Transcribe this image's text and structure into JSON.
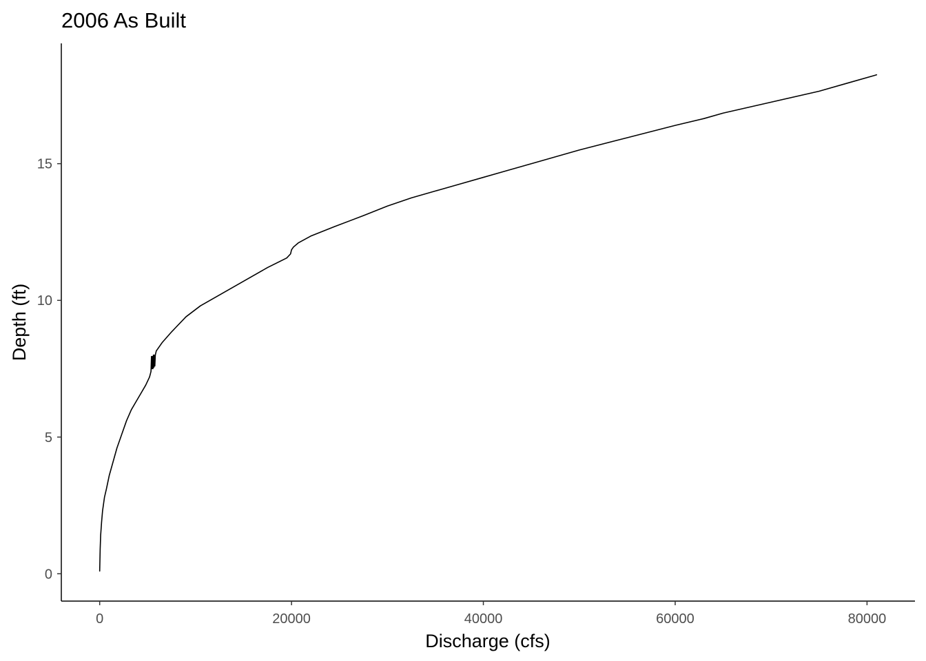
{
  "chart_data": {
    "type": "line",
    "title": "2006 As Built",
    "xlabel": "Discharge (cfs)",
    "ylabel": "Depth (ft)",
    "xlim": [
      -4000,
      85000
    ],
    "ylim": [
      -1.0,
      19.4
    ],
    "x_ticks": [
      0,
      20000,
      40000,
      60000,
      80000
    ],
    "x_tick_labels": [
      "0",
      "20000",
      "40000",
      "60000",
      "80000"
    ],
    "y_ticks": [
      0,
      5,
      10,
      15
    ],
    "y_tick_labels": [
      "0",
      "5",
      "10",
      "15"
    ],
    "grid": false,
    "legend": "none",
    "line_color": "#000000",
    "series": [
      {
        "x": [
          0,
          50,
          100,
          200,
          300,
          500,
          700,
          1000,
          1400,
          1800,
          2300,
          2800,
          3300,
          3800,
          4300,
          4800,
          5200,
          5350,
          5400,
          5450,
          5500,
          5550,
          5600,
          5650,
          5700,
          5750,
          5800,
          5900,
          6500,
          7500,
          9000,
          10500,
          12500,
          15000,
          17500,
          19500,
          19900,
          20000,
          20200,
          20700,
          22000,
          24500,
          27500,
          30000,
          32500,
          35000,
          37500,
          40000,
          42500,
          45000,
          50000,
          55000,
          60000,
          63000,
          65000,
          70000,
          75000,
          78000,
          81000
        ],
        "y": [
          0.1,
          0.9,
          1.4,
          1.9,
          2.3,
          2.8,
          3.1,
          3.6,
          4.1,
          4.6,
          5.1,
          5.6,
          6.0,
          6.3,
          6.6,
          6.9,
          7.2,
          7.4,
          7.95,
          7.5,
          7.95,
          7.5,
          8.0,
          7.55,
          8.0,
          7.6,
          8.0,
          8.15,
          8.45,
          8.85,
          9.4,
          9.8,
          10.2,
          10.7,
          11.2,
          11.55,
          11.7,
          11.85,
          11.95,
          12.1,
          12.35,
          12.7,
          13.1,
          13.45,
          13.75,
          14.0,
          14.25,
          14.5,
          14.75,
          15.0,
          15.5,
          15.95,
          16.4,
          16.65,
          16.85,
          17.25,
          17.65,
          17.95,
          18.25
        ]
      }
    ]
  }
}
